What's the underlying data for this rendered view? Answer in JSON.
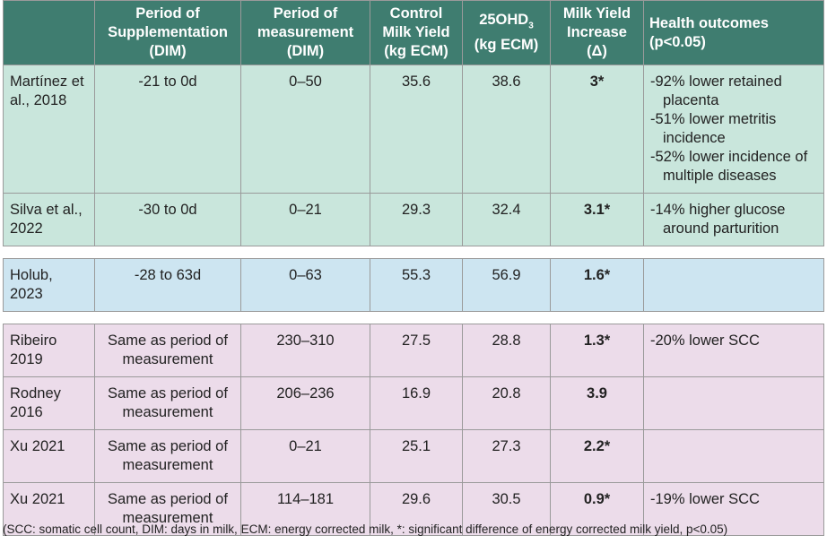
{
  "table": {
    "header_color": "#3f7d70",
    "header": [
      "Period of Supplementation (DIM)",
      "Period of measurement (DIM)",
      "Control Milk Yield (kg ECM)",
      {
        "main": "25OHD",
        "sub": "3",
        "unit": "(kg ECM)"
      },
      "Milk Yield Increase (Δ)",
      "Health outcomes (p<0.05)"
    ],
    "groups": [
      {
        "color": "#c9e6dc",
        "rows": [
          {
            "study": "Martínez et al., 2018",
            "supplementation": "-21 to 0d",
            "measurement": "0–50",
            "control": 35.6,
            "ohd": 38.6,
            "increase": "3*",
            "outcomes": [
              "-92% lower retained placenta",
              "-51% lower metritis incidence",
              "-52% lower incidence of multiple diseases"
            ]
          },
          {
            "study": "Silva et al., 2022",
            "supplementation": "-30 to 0d",
            "measurement": "0–21",
            "control": 29.3,
            "ohd": 32.4,
            "increase": "3.1*",
            "outcomes": [
              "-14% higher glucose around parturition"
            ]
          }
        ]
      },
      {
        "color": "#cde5f1",
        "rows": [
          {
            "study": "Holub, 2023",
            "supplementation": "-28 to 63d",
            "measurement": "0–63",
            "control": 55.3,
            "ohd": 56.9,
            "increase": "1.6*",
            "outcomes": []
          }
        ]
      },
      {
        "color": "#ecdcea",
        "rows": [
          {
            "study": "Ribeiro 2019",
            "supplementation": "Same as period of measurement",
            "measurement": "230–310",
            "control": 27.5,
            "ohd": 28.8,
            "increase": "1.3*",
            "outcomes": [
              "-20% lower SCC"
            ]
          },
          {
            "study": "Rodney 2016",
            "supplementation": "Same as period of measurement",
            "measurement": "206–236",
            "control": 16.9,
            "ohd": 20.8,
            "increase": "3.9",
            "outcomes": []
          },
          {
            "study": "Xu 2021",
            "supplementation": "Same as period of measurement",
            "measurement": "0–21",
            "control": 25.1,
            "ohd": 27.3,
            "increase": "2.2*",
            "outcomes": []
          },
          {
            "study": "Xu 2021",
            "supplementation": "Same as period of measurement",
            "measurement": "114–181",
            "control": 29.6,
            "ohd": 30.5,
            "increase": "0.9*",
            "outcomes": [
              "-19% lower SCC"
            ]
          }
        ]
      }
    ],
    "footnote": "(SCC: somatic cell count, DIM: days in milk, ECM: energy corrected milk, *: significant difference of energy corrected milk yield, p<0.05)"
  }
}
